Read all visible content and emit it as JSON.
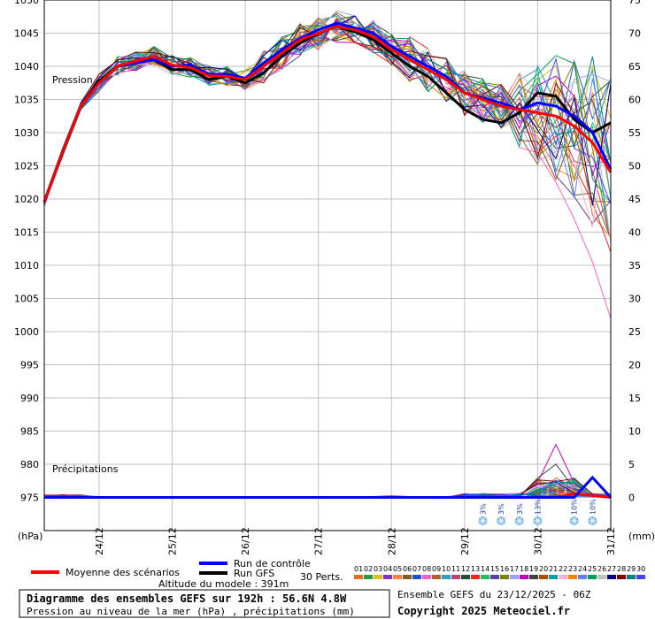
{
  "chart_data": {
    "type": "line",
    "title": "",
    "left_axis": {
      "unit": "(hPa)",
      "min": 970,
      "max": 1050,
      "ticks": [
        "1050",
        "1045",
        "1040",
        "1035",
        "1030",
        "1025",
        "1020",
        "1015",
        "1010",
        "1005",
        "1000",
        "995",
        "990",
        "985",
        "980",
        "975"
      ]
    },
    "right_axis": {
      "unit": "(mm)",
      "min": -5,
      "max": 75,
      "ticks": [
        "75",
        "70",
        "65",
        "60",
        "55",
        "50",
        "45",
        "40",
        "35",
        "30",
        "25",
        "20",
        "15",
        "10",
        "5",
        "0"
      ]
    },
    "x_labels": [
      "24/12",
      "25/12",
      "26/12",
      "27/12",
      "28/12",
      "29/12",
      "30/12",
      "31/12"
    ],
    "x_step_hours": 6,
    "pressure_label": "Pression",
    "precip_label": "Précipitations",
    "series": [
      {
        "name": "Moyenne des scénarios",
        "color": "#ff0000",
        "axis": "left",
        "values": [
          1019.5,
          1027,
          1034,
          1037.5,
          1040,
          1040.8,
          1041.5,
          1040.2,
          1039.8,
          1038.6,
          1038.5,
          1038,
          1040,
          1042,
          1044,
          1045,
          1046,
          1045.5,
          1044.5,
          1042.5,
          1041,
          1039.5,
          1038,
          1036,
          1035,
          1034,
          1033.5,
          1033,
          1032.5,
          1031,
          1028.5,
          1024
        ]
      },
      {
        "name": "Run de contrôle",
        "color": "#0000ff",
        "axis": "left",
        "values": [
          1019.5,
          1027,
          1034,
          1037.5,
          1040,
          1040.5,
          1041,
          1040,
          1040.2,
          1038.8,
          1038.8,
          1038.2,
          1040.5,
          1042.5,
          1044.2,
          1045.5,
          1046.5,
          1045.8,
          1045,
          1043,
          1041.5,
          1040,
          1038.5,
          1036,
          1035.2,
          1034.5,
          1033.5,
          1034.5,
          1034,
          1032.5,
          1030,
          1024.5
        ]
      },
      {
        "name": "Run GFS",
        "color": "#000000",
        "axis": "left",
        "values": [
          1019.5,
          1027,
          1034,
          1037.8,
          1040,
          1040.6,
          1041,
          1039.5,
          1039.5,
          1038,
          1038.5,
          1037.5,
          1039,
          1041.5,
          1043.5,
          1045,
          1046,
          1045.2,
          1044,
          1042,
          1040,
          1038.5,
          1036,
          1033.5,
          1032,
          1031.5,
          1033,
          1036,
          1035.5,
          1032,
          1030,
          1031.5
        ]
      }
    ],
    "precip_series": [
      {
        "name": "Moyenne des scénarios",
        "color": "#ff0000",
        "values": [
          0.1,
          0.2,
          0.1,
          0,
          0,
          0,
          0,
          0,
          0,
          0,
          0,
          0,
          0,
          0,
          0,
          0,
          0,
          0,
          0,
          0.1,
          0,
          0,
          0,
          0.1,
          0.1,
          0.1,
          0,
          0.1,
          0.1,
          0.5,
          0.3,
          0
        ]
      },
      {
        "name": "Run de contrôle",
        "color": "#0000ff",
        "values": [
          0,
          0,
          0,
          0,
          0,
          0,
          0,
          0,
          0,
          0,
          0,
          0,
          0,
          0,
          0,
          0,
          0,
          0,
          0,
          0,
          0,
          0,
          0,
          0,
          0,
          0,
          0,
          0,
          0,
          0,
          3,
          0
        ]
      }
    ],
    "snow_probabilities": [
      {
        "step": 24,
        "text": "3%"
      },
      {
        "step": 25,
        "text": "3%"
      },
      {
        "step": 26,
        "text": "3%"
      },
      {
        "step": 27,
        "text": "13%"
      },
      {
        "step": 29,
        "text": "10%"
      },
      {
        "step": 30,
        "text": "10%"
      }
    ],
    "legend": {
      "mean": "Moyenne des scénarios",
      "control": "Run de contrôle",
      "gfs": "Run GFS",
      "perts": "30 Perts.",
      "pert_numbers": [
        "01",
        "02",
        "03",
        "04",
        "05",
        "06",
        "07",
        "08",
        "09",
        "10",
        "11",
        "12",
        "13",
        "14",
        "15",
        "16",
        "17",
        "18",
        "19",
        "20",
        "21",
        "22",
        "23",
        "24",
        "25",
        "26",
        "27",
        "28",
        "29",
        "30"
      ],
      "pert_colors": [
        "#e07020",
        "#2a9a40",
        "#d8c020",
        "#8a30c0",
        "#ff8040",
        "#806020",
        "#2050d0",
        "#ff60c0",
        "#b06030",
        "#30a0c0",
        "#c04080",
        "#205030",
        "#ff2020",
        "#20c060",
        "#6040a0",
        "#808000",
        "#a0a0ff",
        "#c000c0",
        "#404040",
        "#a05000",
        "#00a0a0",
        "#ffb0d0",
        "#ff8000",
        "#6080ff",
        "#00a050",
        "#c0c0c0",
        "#000080",
        "#800000",
        "#008080",
        "#4040ff"
      ]
    },
    "footer": {
      "altitude": "Altitude du modele : 391m",
      "box_title": "Diagramme des ensembles GEFS sur 192h : 56.6N 4.8W",
      "box_subtitle": "Pression au niveau de la mer (hPa) , précipitations (mm)",
      "ensemble": "Ensemble GEFS du 23/12/2025 - 06Z",
      "copyright": "Copyright 2025 Meteociel.fr"
    }
  }
}
